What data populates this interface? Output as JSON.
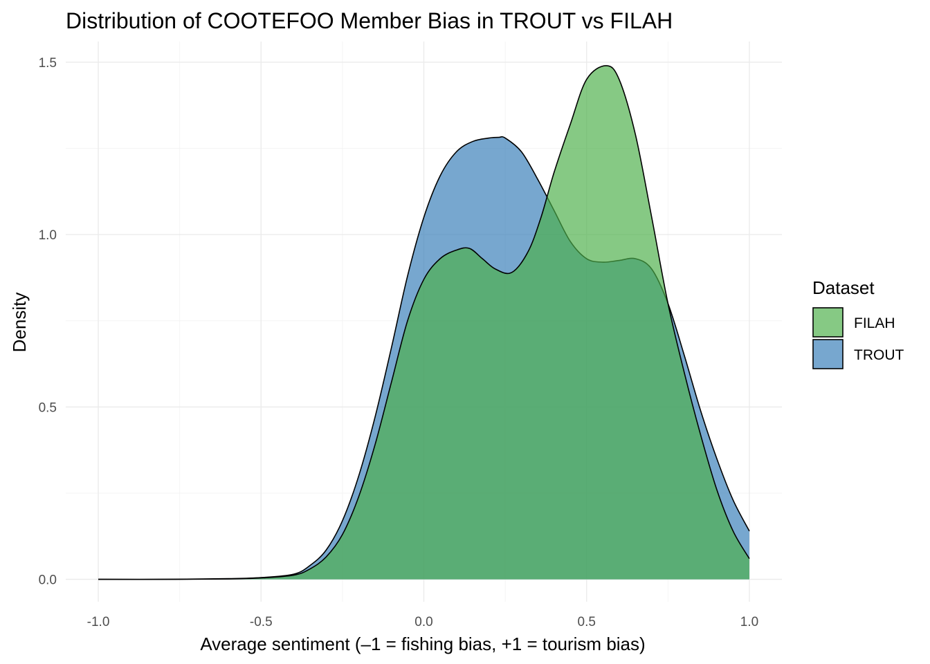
{
  "chart_data": {
    "type": "area",
    "title": "Distribution of COOTEFOO Member Bias in TROUT vs FILAH",
    "xlabel": "Average sentiment (–1 = fishing bias, +1 = tourism bias)",
    "ylabel": "Density",
    "xlim": [
      -1.1,
      1.1
    ],
    "ylim": [
      -0.065,
      1.56
    ],
    "x_ticks": [
      -1.0,
      -0.5,
      0.0,
      0.5,
      1.0
    ],
    "x_tick_labels": [
      "-1.0",
      "-0.5",
      "0.0",
      "0.5",
      "1.0"
    ],
    "y_ticks": [
      0.0,
      0.5,
      1.0,
      1.5
    ],
    "y_tick_labels": [
      "0.0",
      "0.5",
      "1.0",
      "1.5"
    ],
    "grid": true,
    "legend": {
      "title": "Dataset",
      "position": "right",
      "entries": [
        "FILAH",
        "TROUT"
      ]
    },
    "series": [
      {
        "name": "TROUT",
        "color": "#377eb8",
        "x": [
          -1.0,
          -0.8,
          -0.6,
          -0.5,
          -0.4,
          -0.35,
          -0.3,
          -0.25,
          -0.2,
          -0.15,
          -0.1,
          -0.05,
          0.0,
          0.05,
          0.1,
          0.15,
          0.2,
          0.23,
          0.25,
          0.3,
          0.35,
          0.4,
          0.45,
          0.5,
          0.55,
          0.6,
          0.65,
          0.7,
          0.75,
          0.8,
          0.85,
          0.9,
          0.95,
          1.0
        ],
        "y": [
          0.0,
          0.0,
          0.002,
          0.005,
          0.015,
          0.04,
          0.085,
          0.17,
          0.3,
          0.47,
          0.67,
          0.88,
          1.05,
          1.17,
          1.24,
          1.27,
          1.28,
          1.282,
          1.28,
          1.24,
          1.16,
          1.07,
          0.98,
          0.93,
          0.92,
          0.925,
          0.93,
          0.9,
          0.8,
          0.65,
          0.49,
          0.35,
          0.23,
          0.14
        ]
      },
      {
        "name": "FILAH",
        "color": "#4daf4a",
        "x": [
          -1.0,
          -0.8,
          -0.6,
          -0.5,
          -0.4,
          -0.35,
          -0.3,
          -0.25,
          -0.2,
          -0.15,
          -0.1,
          -0.05,
          0.0,
          0.05,
          0.1,
          0.14,
          0.18,
          0.22,
          0.27,
          0.32,
          0.36,
          0.4,
          0.45,
          0.5,
          0.56,
          0.6,
          0.65,
          0.7,
          0.75,
          0.8,
          0.85,
          0.9,
          0.95,
          1.0
        ],
        "y": [
          0.0,
          0.0,
          0.001,
          0.004,
          0.012,
          0.03,
          0.065,
          0.13,
          0.24,
          0.39,
          0.57,
          0.75,
          0.87,
          0.93,
          0.955,
          0.96,
          0.93,
          0.9,
          0.89,
          0.95,
          1.05,
          1.18,
          1.32,
          1.45,
          1.49,
          1.45,
          1.29,
          1.05,
          0.8,
          0.6,
          0.42,
          0.26,
          0.14,
          0.06
        ]
      }
    ]
  }
}
